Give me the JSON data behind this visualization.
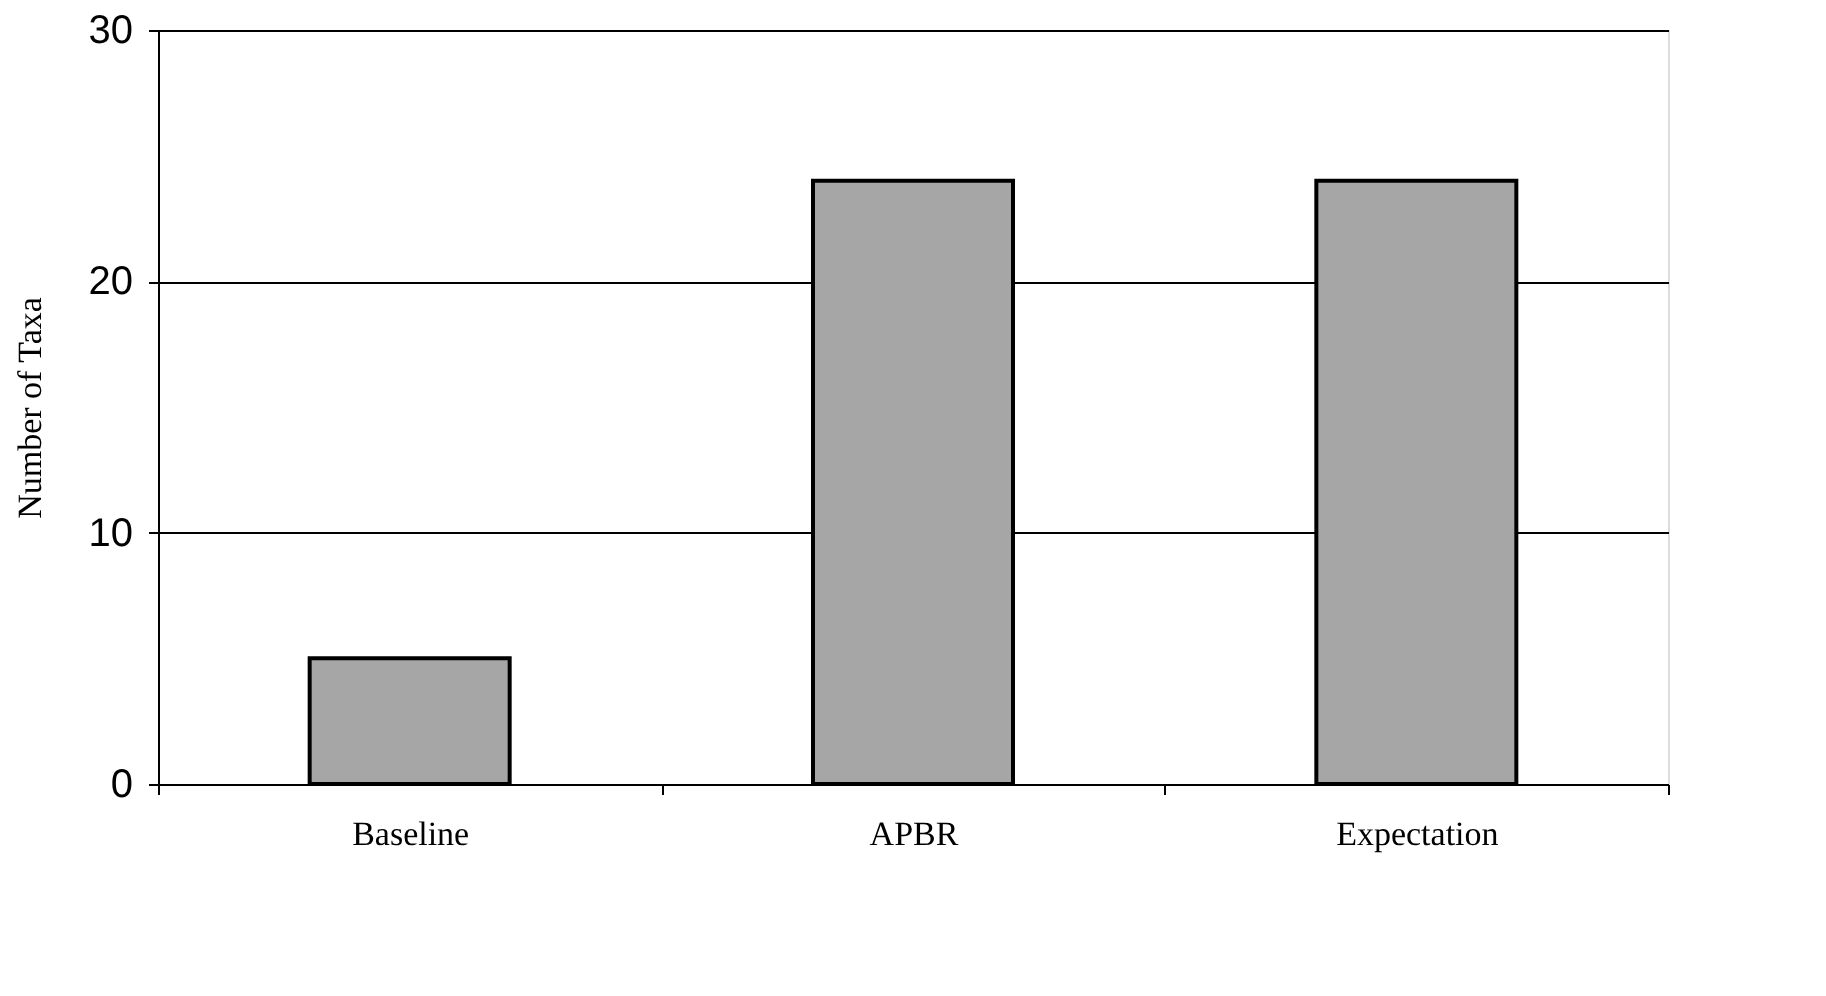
{
  "chart_data": {
    "type": "bar",
    "ylabel": "Number of Taxa",
    "categories": [
      "Baseline",
      "APBR",
      "Expectation"
    ],
    "values": [
      5,
      24,
      24
    ],
    "color": "#a6a6a6",
    "ylim": [
      0,
      30
    ],
    "yticks": [
      0,
      10,
      20,
      30
    ],
    "grid": "y"
  }
}
